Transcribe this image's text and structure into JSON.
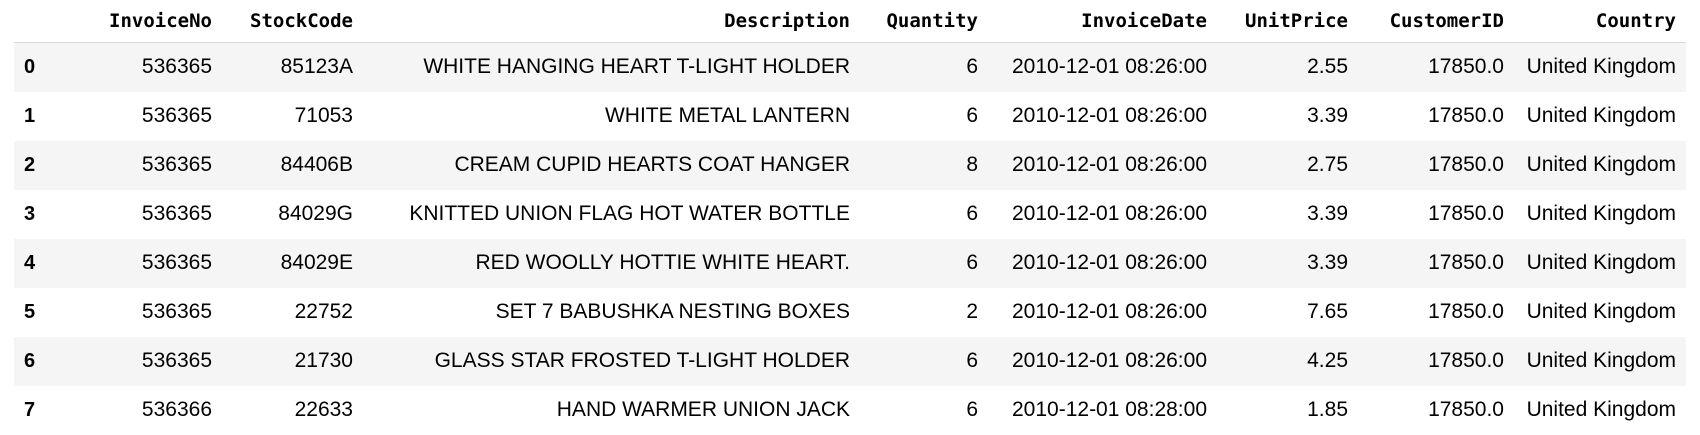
{
  "table": {
    "columns": [
      "",
      "InvoiceNo",
      "StockCode",
      "Description",
      "Quantity",
      "InvoiceDate",
      "UnitPrice",
      "CustomerID",
      "Country"
    ],
    "rows": [
      {
        "index": "0",
        "InvoiceNo": "536365",
        "StockCode": "85123A",
        "Description": "WHITE HANGING HEART T-LIGHT HOLDER",
        "Quantity": "6",
        "InvoiceDate": "2010-12-01 08:26:00",
        "UnitPrice": "2.55",
        "CustomerID": "17850.0",
        "Country": "United Kingdom"
      },
      {
        "index": "1",
        "InvoiceNo": "536365",
        "StockCode": "71053",
        "Description": "WHITE METAL LANTERN",
        "Quantity": "6",
        "InvoiceDate": "2010-12-01 08:26:00",
        "UnitPrice": "3.39",
        "CustomerID": "17850.0",
        "Country": "United Kingdom"
      },
      {
        "index": "2",
        "InvoiceNo": "536365",
        "StockCode": "84406B",
        "Description": "CREAM CUPID HEARTS COAT HANGER",
        "Quantity": "8",
        "InvoiceDate": "2010-12-01 08:26:00",
        "UnitPrice": "2.75",
        "CustomerID": "17850.0",
        "Country": "United Kingdom"
      },
      {
        "index": "3",
        "InvoiceNo": "536365",
        "StockCode": "84029G",
        "Description": "KNITTED UNION FLAG HOT WATER BOTTLE",
        "Quantity": "6",
        "InvoiceDate": "2010-12-01 08:26:00",
        "UnitPrice": "3.39",
        "CustomerID": "17850.0",
        "Country": "United Kingdom"
      },
      {
        "index": "4",
        "InvoiceNo": "536365",
        "StockCode": "84029E",
        "Description": "RED WOOLLY HOTTIE WHITE HEART.",
        "Quantity": "6",
        "InvoiceDate": "2010-12-01 08:26:00",
        "UnitPrice": "3.39",
        "CustomerID": "17850.0",
        "Country": "United Kingdom"
      },
      {
        "index": "5",
        "InvoiceNo": "536365",
        "StockCode": "22752",
        "Description": "SET 7 BABUSHKA NESTING BOXES",
        "Quantity": "2",
        "InvoiceDate": "2010-12-01 08:26:00",
        "UnitPrice": "7.65",
        "CustomerID": "17850.0",
        "Country": "United Kingdom"
      },
      {
        "index": "6",
        "InvoiceNo": "536365",
        "StockCode": "21730",
        "Description": "GLASS STAR FROSTED T-LIGHT HOLDER",
        "Quantity": "6",
        "InvoiceDate": "2010-12-01 08:26:00",
        "UnitPrice": "4.25",
        "CustomerID": "17850.0",
        "Country": "United Kingdom"
      },
      {
        "index": "7",
        "InvoiceNo": "536366",
        "StockCode": "22633",
        "Description": "HAND WARMER UNION JACK",
        "Quantity": "6",
        "InvoiceDate": "2010-12-01 08:28:00",
        "UnitPrice": "1.85",
        "CustomerID": "17850.0",
        "Country": "United Kingdom"
      }
    ]
  },
  "colors": {
    "stripe_odd": "#f5f5f5",
    "stripe_even": "#ffffff",
    "header_rule": "#d9d9d9",
    "text": "#000000"
  }
}
